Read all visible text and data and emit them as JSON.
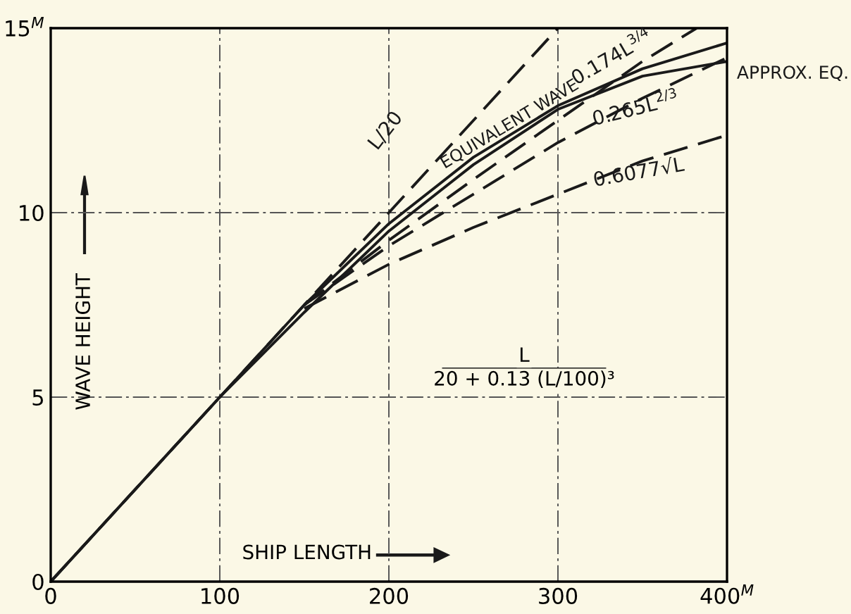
{
  "chart_data": {
    "type": "line",
    "xlabel": "SHIP LENGTH",
    "ylabel": "WAVE HEIGHT",
    "xlim": [
      0,
      400
    ],
    "ylim": [
      0,
      15
    ],
    "xticks": [
      0,
      100,
      200,
      300,
      {
        "value": 400,
        "label": "400$^{M}$"
      }
    ],
    "yticks": [
      0,
      5,
      10,
      {
        "value": 15,
        "label": "15$^{M}$"
      }
    ],
    "grid": true,
    "marker": "none",
    "series": [
      {
        "name": "L/20",
        "color": "#1a1a1a",
        "line_style": "dashed",
        "x": [
          0,
          100,
          200,
          300
        ],
        "values": [
          0,
          5,
          10,
          15
        ]
      },
      {
        "name": "EQUIVALENT WAVE",
        "color": "#1a1a1a",
        "line_style": "solid",
        "x": [
          0,
          50,
          100,
          150,
          200,
          250,
          300,
          350,
          400
        ],
        "values": [
          0,
          2.5,
          5,
          7.5,
          9.7,
          11.5,
          12.9,
          13.9,
          14.6
        ]
      },
      {
        "name": "0.174L$^{3/4}$",
        "color": "#1a1a1a",
        "line_style": "dashed",
        "x": [
          150,
          200,
          250,
          300,
          350,
          382
        ],
        "values": [
          7.5,
          9.25,
          10.9,
          12.5,
          14.1,
          15
        ]
      },
      {
        "name": "0.265L$^{2/3}$",
        "color": "#1a1a1a",
        "line_style": "dashed",
        "x": [
          150,
          200,
          250,
          300,
          350,
          400
        ],
        "values": [
          7.5,
          9.1,
          10.5,
          11.9,
          13.1,
          14.2
        ]
      },
      {
        "name": "0.6077√L",
        "color": "#1a1a1a",
        "line_style": "dashed",
        "x": [
          150,
          200,
          250,
          300,
          350,
          400
        ],
        "values": [
          7.4,
          8.6,
          9.6,
          10.5,
          11.4,
          12.1
        ]
      },
      {
        "name": "APPROX. EQ.",
        "color": "#1a1a1a",
        "line_style": "solid",
        "x": [
          0,
          50,
          100,
          150,
          200,
          250,
          300,
          350,
          400
        ],
        "values": [
          0,
          2.5,
          5,
          7.3,
          9.5,
          11.3,
          12.8,
          13.7,
          14.1
        ]
      }
    ],
    "annotations": [
      "L",
      "20 + 0.13 (L/100)³"
    ]
  }
}
